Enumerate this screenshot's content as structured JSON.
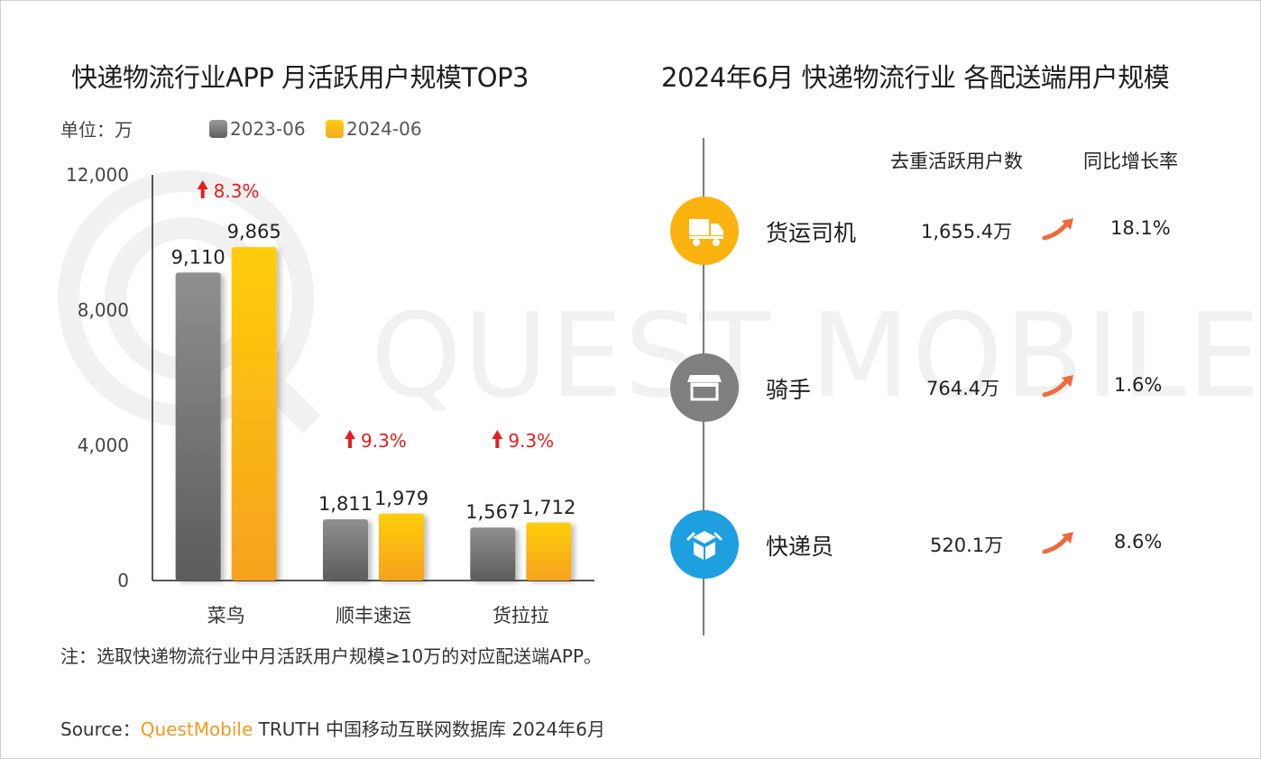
{
  "colors": {
    "gray": "#8a8a8a",
    "yellow": "#fbb40f",
    "up_red": "#e51e1e",
    "blue_icon": "#1e9fe0",
    "brand_orange": "#f49a1c",
    "arrow_orange": "#ef6a3c"
  },
  "left": {
    "title": "快递物流行业APP 月活跃用户规模TOP3",
    "unit": "单位：万",
    "legend": [
      "2023-06",
      "2024-06"
    ]
  },
  "right": {
    "title": "2024年6月 快递物流行业 各配送端用户规模",
    "headers": {
      "users": "去重活跃用户数",
      "growth": "同比增长率"
    },
    "rows": [
      {
        "icon": "truck-icon",
        "label": "货运司机",
        "value": "1,655.4万",
        "growth": "18.1%"
      },
      {
        "icon": "storefront-icon",
        "label": "骑手",
        "value": "764.4万",
        "growth": "1.6%"
      },
      {
        "icon": "package-icon",
        "label": "快递员",
        "value": "520.1万",
        "growth": "8.6%"
      }
    ]
  },
  "chart_data": {
    "type": "bar",
    "categories": [
      "菜鸟",
      "顺丰速运",
      "货拉拉"
    ],
    "series": [
      {
        "name": "2023-06",
        "values": [
          9110,
          1811,
          1567
        ],
        "labels": [
          "9,110",
          "1,811",
          "1,567"
        ]
      },
      {
        "name": "2024-06",
        "values": [
          9865,
          1979,
          1712
        ],
        "labels": [
          "9,865",
          "1,979",
          "1,712"
        ]
      }
    ],
    "growth": [
      "8.3%",
      "9.3%",
      "9.3%"
    ],
    "yticks": [
      0,
      4000,
      8000,
      12000
    ],
    "ytick_labels": [
      "0",
      "4,000",
      "8,000",
      "12,000"
    ],
    "ylim": [
      0,
      12000
    ],
    "legend_position": "top"
  },
  "note": "注：选取快递物流行业中月活跃用户规模≥10万的对应配送端APP。",
  "source": {
    "prefix": "Source：",
    "brand": "QuestMobile",
    "rest": " TRUTH 中国移动互联网数据库 2024年6月"
  },
  "watermark": "QUEST MOBILE"
}
